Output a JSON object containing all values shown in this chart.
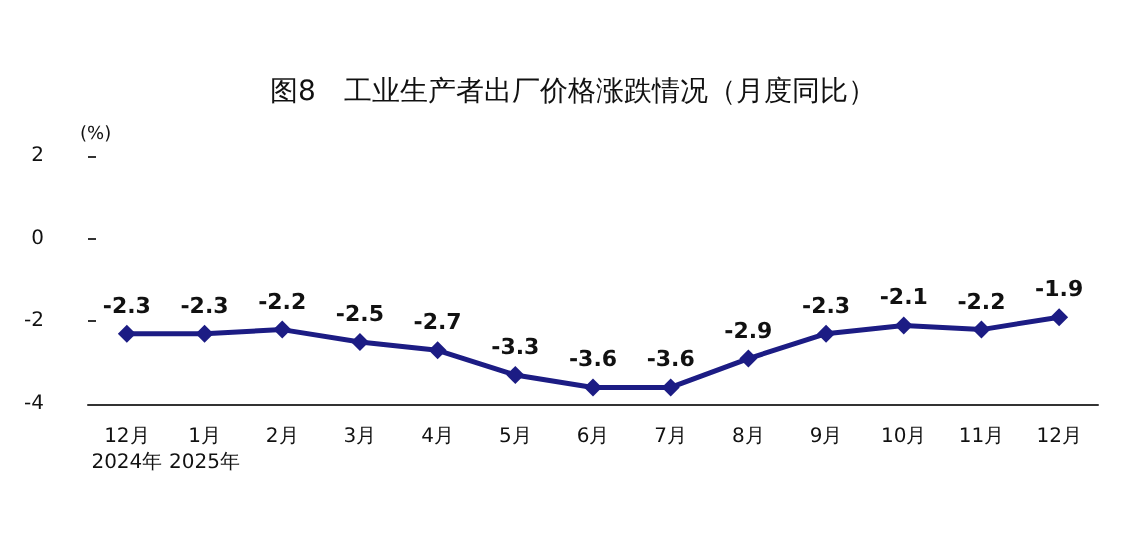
{
  "chart_data": {
    "type": "line",
    "title": "图8　工业生产者出厂价格涨跌情况（月度同比）",
    "ylabel": "(%)",
    "categories": [
      "12月\n2024年",
      "1月\n2025年",
      "2月",
      "3月",
      "4月",
      "5月",
      "6月",
      "7月",
      "8月",
      "9月",
      "10月",
      "11月",
      "12月"
    ],
    "series": [
      {
        "color": "#1c1c84",
        "values": [
          -2.3,
          -2.3,
          -2.2,
          -2.5,
          -2.7,
          -3.3,
          -3.6,
          -3.6,
          -2.9,
          -2.3,
          -2.1,
          -2.2,
          -1.9
        ]
      }
    ],
    "ylim": [
      -4,
      2
    ],
    "yticks": [
      -4,
      -2,
      0,
      2
    ],
    "data_labels": true,
    "marker": "diamond",
    "line_style": "solid",
    "grid": false
  }
}
